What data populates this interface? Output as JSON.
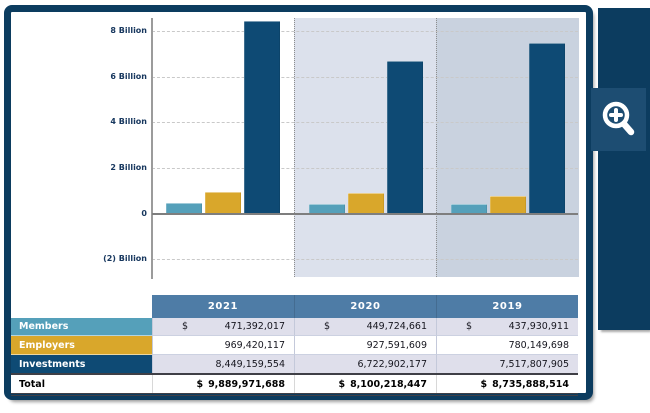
{
  "colors": {
    "navy": "#0c3c5f",
    "steel": "#4e7ca6",
    "gold": "#d9a72b",
    "blue": "#55a0ba",
    "inv": "#0e4a74",
    "lav": "#dfdfeb",
    "panel2": "#dce1ec",
    "panel3": "#c9d2df",
    "axisText": "#17375e",
    "btn": "#1d4d72"
  },
  "chart_data": {
    "type": "bar",
    "title": "",
    "categories": [
      "2021",
      "2020",
      "2019"
    ],
    "series": [
      {
        "name": "Members",
        "color": "#55a0ba",
        "values": [
          471392017,
          449724661,
          437930911
        ]
      },
      {
        "name": "Employers",
        "color": "#d9a72b",
        "values": [
          969420117,
          927591609,
          780149698
        ]
      },
      {
        "name": "Investments",
        "color": "#0e4a74",
        "values": [
          8449159554,
          6722902177,
          7517807905
        ]
      }
    ],
    "y_ticks": [
      "8 Billion",
      "6 Billion",
      "4 Billion",
      "2 Billion",
      "0",
      "(2) Billion"
    ],
    "ylabel": "",
    "xlabel": "",
    "ylim": [
      -2760000000,
      8600000000
    ],
    "grid": "horizontal-dashed",
    "legend_position": "none"
  },
  "table": {
    "currency": "$",
    "columns": [
      "2021",
      "2020",
      "2019"
    ],
    "rows": [
      {
        "label": "Members",
        "values": [
          "471,392,017",
          "449,724,661",
          "437,930,911"
        ]
      },
      {
        "label": "Employers",
        "values": [
          "969,420,117",
          "927,591,609",
          "780,149,698"
        ]
      },
      {
        "label": "Investments",
        "values": [
          "8,449,159,554",
          "6,722,902,177",
          "7,517,807,905"
        ]
      }
    ],
    "totals": {
      "label": "Total",
      "values": [
        "9,889,971,688",
        "8,100,218,447",
        "8,735,888,514"
      ]
    }
  },
  "toolbar": {
    "zoom_icon": "zoom-in-magnifier"
  }
}
